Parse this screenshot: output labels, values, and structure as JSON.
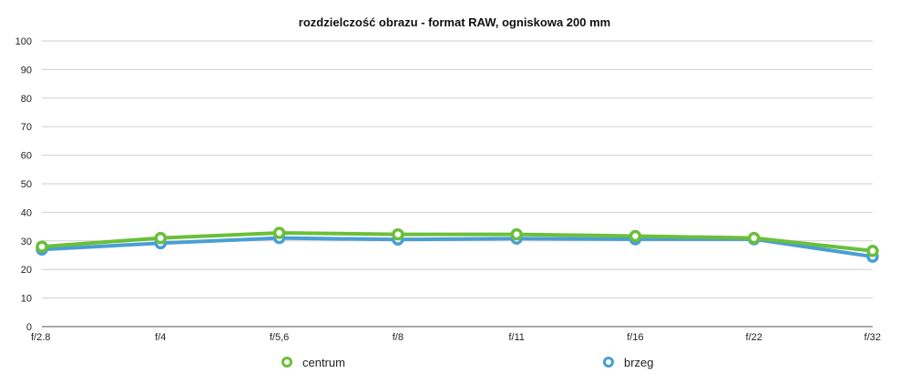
{
  "chart_data": {
    "type": "line",
    "title": "rozdzielczość obrazu - format RAW, ogniskowa 200 mm",
    "xlabel": "",
    "ylabel": "",
    "categories": [
      "f/2.8",
      "f/4",
      "f/5,6",
      "f/8",
      "f/11",
      "f/16",
      "f/22",
      "f/32"
    ],
    "ylim": [
      0,
      100
    ],
    "yticks": [
      "0",
      "10",
      "20",
      "30",
      "40",
      "50",
      "60",
      "70",
      "80",
      "90",
      "100"
    ],
    "grid": true,
    "legend_position": "bottom",
    "series": [
      {
        "name": "brzeg",
        "color": "#4a9ed4",
        "values": [
          27,
          29.2,
          31,
          30.5,
          30.8,
          30.6,
          30.6,
          24.5
        ]
      },
      {
        "name": "centrum",
        "color": "#6abf3a",
        "values": [
          28,
          31,
          32.8,
          32.3,
          32.3,
          31.7,
          31,
          26.5
        ]
      }
    ],
    "legend": [
      {
        "name": "centrum",
        "color": "#6abf3a"
      },
      {
        "name": "brzeg",
        "color": "#4a9ed4"
      }
    ]
  }
}
